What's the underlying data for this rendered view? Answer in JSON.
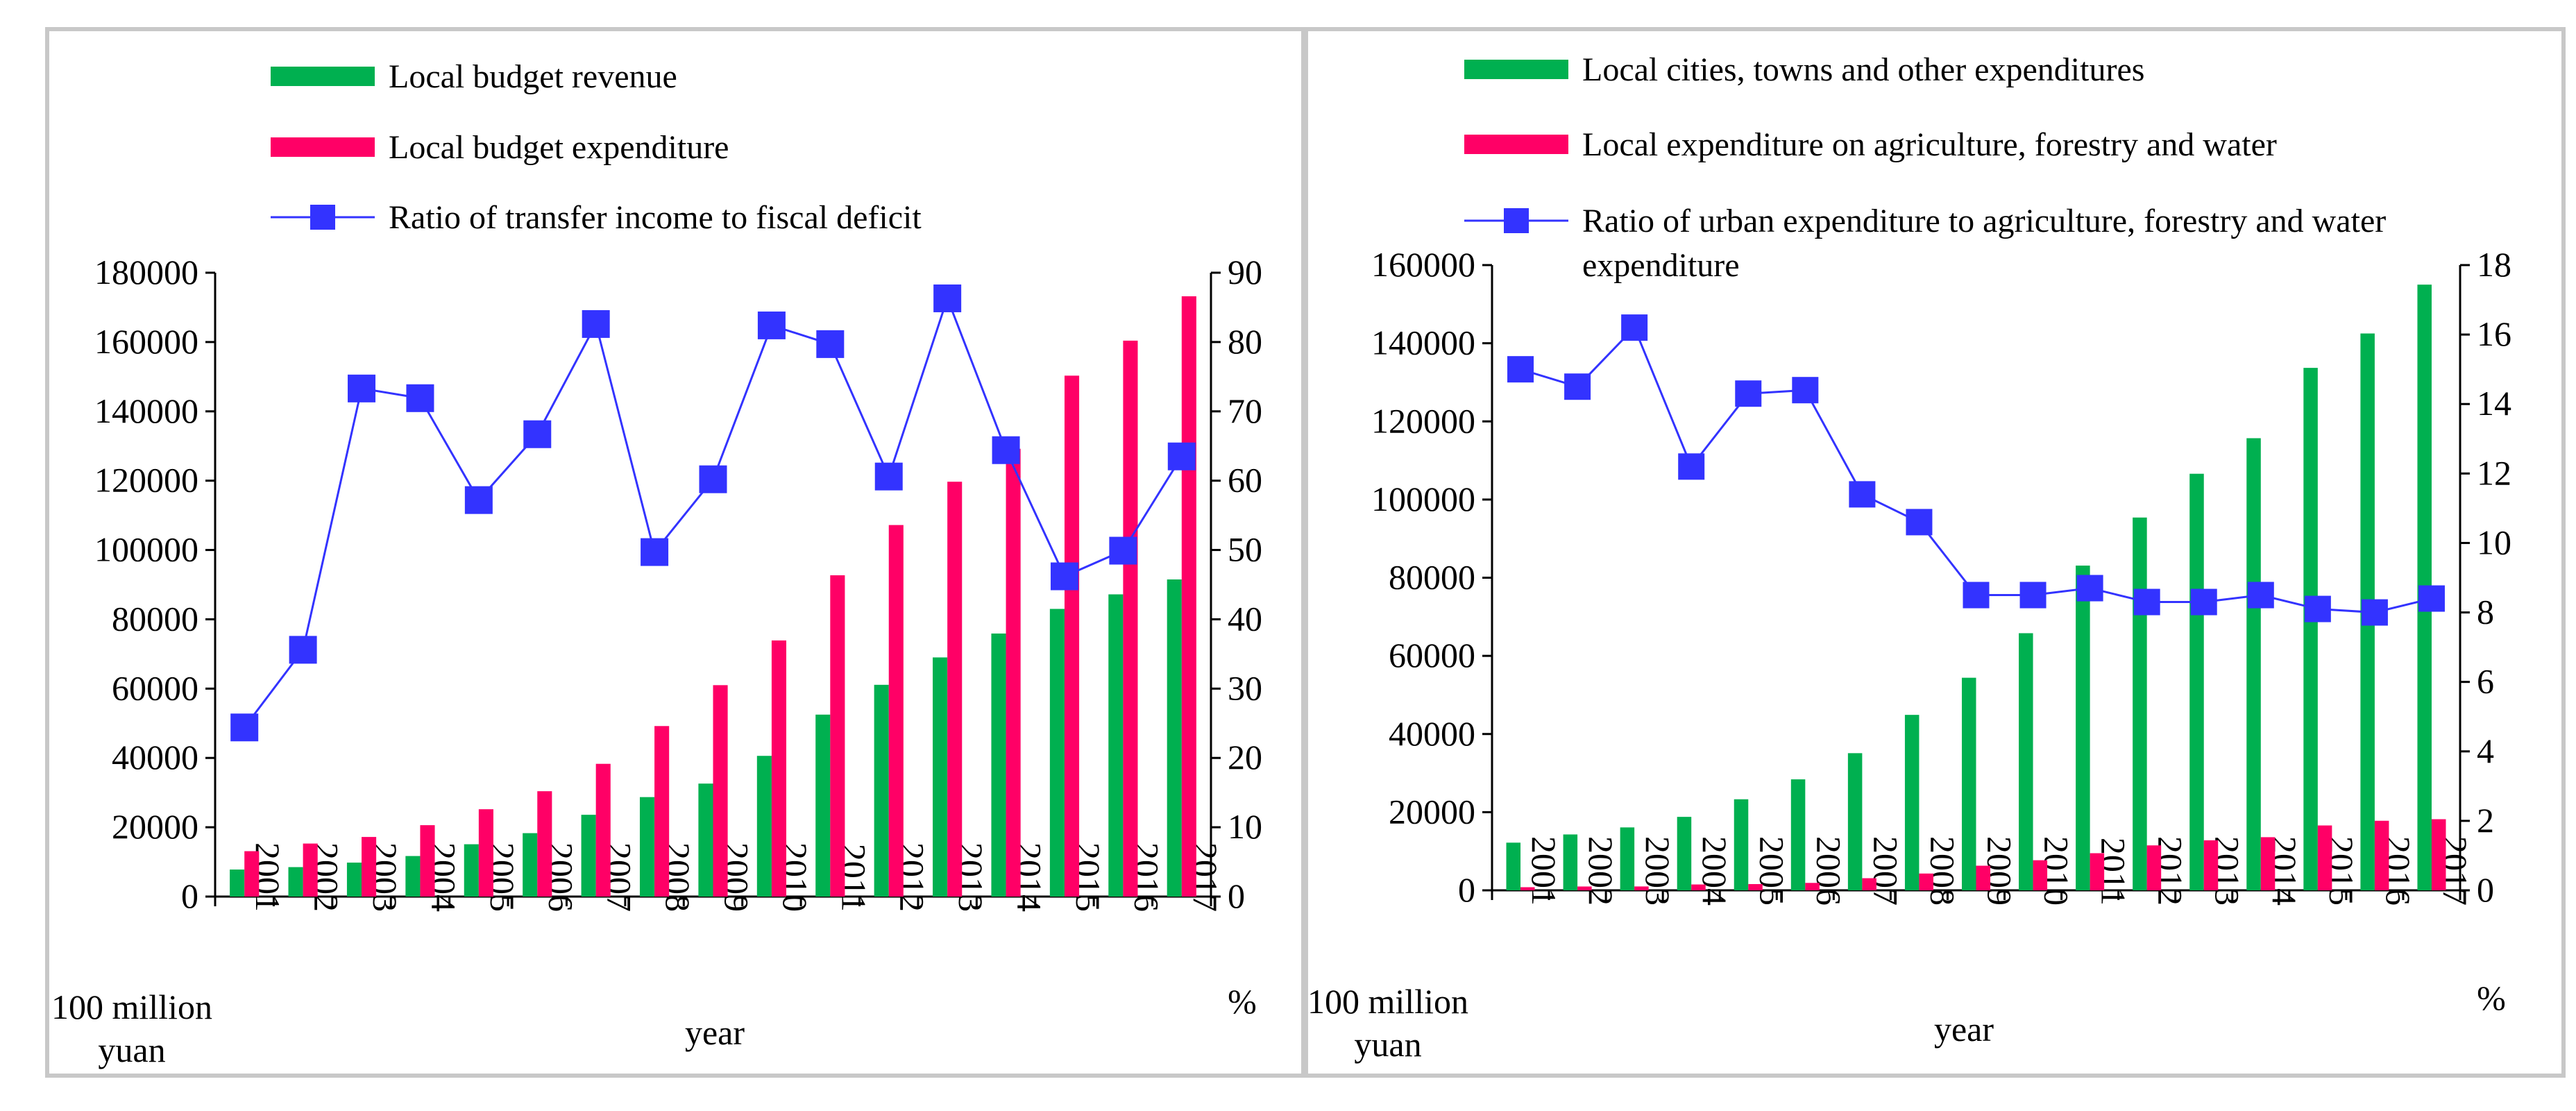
{
  "chart_data": [
    {
      "type": "bar",
      "secondary_type": "line",
      "categories": [
        "2001",
        "2002",
        "2003",
        "2004",
        "2005",
        "2006",
        "2007",
        "2008",
        "2009",
        "2010",
        "2011",
        "2012",
        "2013",
        "2014",
        "2015",
        "2016",
        "2017"
      ],
      "series": [
        {
          "name": "Local budget revenue",
          "kind": "bar",
          "axis": "left",
          "color": "#00b050",
          "values": [
            7800,
            8500,
            9800,
            11700,
            15100,
            18300,
            23600,
            28700,
            32600,
            40600,
            52500,
            61100,
            69000,
            75900,
            83000,
            87200,
            91500
          ]
        },
        {
          "name": "Local budget expenditure",
          "kind": "bar",
          "axis": "left",
          "color": "#ff0066",
          "values": [
            13100,
            15300,
            17200,
            20600,
            25200,
            30400,
            38300,
            49200,
            61000,
            73900,
            92700,
            107200,
            119700,
            129200,
            150300,
            160400,
            173200
          ]
        },
        {
          "name": "Ratio of transfer income to fiscal deficit",
          "kind": "line",
          "axis": "right",
          "color": "#3333ff",
          "values": [
            24.4,
            35.6,
            73.3,
            71.9,
            57.2,
            66.7,
            82.6,
            49.7,
            60.2,
            82.4,
            79.7,
            60.6,
            86.3,
            64.4,
            46.2,
            49.9,
            63.5
          ]
        }
      ],
      "ylim_left": [
        0,
        180000
      ],
      "ylim_right": [
        0,
        90
      ],
      "yticks_left": [
        "0",
        "20000",
        "40000",
        "60000",
        "80000",
        "100000",
        "120000",
        "140000",
        "160000",
        "180000"
      ],
      "yticks_right": [
        "0",
        "10",
        "20",
        "30",
        "40",
        "50",
        "60",
        "70",
        "80",
        "90"
      ],
      "ylabel_left": "100 million yuan",
      "ylabel_right": "%",
      "xlabel": "year",
      "legend_position": "top-left"
    },
    {
      "type": "bar",
      "secondary_type": "line",
      "categories": [
        "2001",
        "2002",
        "2003",
        "2004",
        "2005",
        "2006",
        "2007",
        "2008",
        "2009",
        "2010",
        "2011",
        "2012",
        "2013",
        "2014",
        "2015",
        "2016",
        "2017"
      ],
      "series": [
        {
          "name": "Local cities, towns and other expenditures",
          "kind": "bar",
          "axis": "left",
          "color": "#00b050",
          "values": [
            12200,
            14300,
            16100,
            18800,
            23300,
            28400,
            35100,
            44900,
            54400,
            65800,
            83100,
            95400,
            106600,
            115700,
            133700,
            142500,
            155000
          ]
        },
        {
          "name": "Local expenditure on agriculture, forestry and water",
          "kind": "bar",
          "axis": "left",
          "color": "#ff0066",
          "values": [
            800,
            980,
            990,
            1500,
            1600,
            1900,
            3100,
            4300,
            6300,
            7700,
            9500,
            11500,
            12800,
            13600,
            16600,
            17800,
            18200
          ]
        },
        {
          "name": "Ratio of urban expenditure to agriculture, forestry and water expenditure",
          "kind": "line",
          "axis": "right",
          "color": "#3333ff",
          "values": [
            15.0,
            14.5,
            16.2,
            12.2,
            14.3,
            14.4,
            11.4,
            10.6,
            8.5,
            8.5,
            8.7,
            8.3,
            8.3,
            8.5,
            8.1,
            8.0,
            8.4
          ]
        }
      ],
      "ylim_left": [
        0,
        160000
      ],
      "ylim_right": [
        0,
        18
      ],
      "yticks_left": [
        "0",
        "20000",
        "40000",
        "60000",
        "80000",
        "100000",
        "120000",
        "140000",
        "160000"
      ],
      "yticks_right": [
        "0",
        "2",
        "4",
        "6",
        "8",
        "10",
        "12",
        "14",
        "16",
        "18"
      ],
      "ylabel_left": "100 million yuan",
      "ylabel_right": "%",
      "xlabel": "year",
      "legend_position": "top-left"
    }
  ]
}
